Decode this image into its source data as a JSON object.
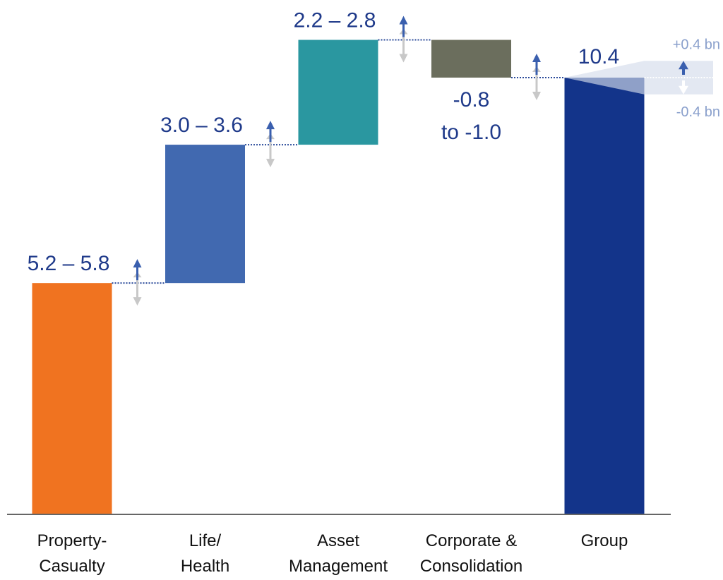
{
  "chart_data": {
    "type": "waterfall",
    "categories": [
      [
        "Property-",
        "Casualty"
      ],
      [
        "Life/",
        "Health"
      ],
      [
        "Asset",
        "Management"
      ],
      [
        "Corporate &",
        "Consolidation"
      ],
      [
        "Group"
      ]
    ],
    "values": [
      5.5,
      3.3,
      2.5,
      -0.9,
      10.4
    ],
    "value_labels": [
      [
        "5.2 – 5.8"
      ],
      [
        "3.0 – 3.6"
      ],
      [
        "2.2 – 2.8"
      ],
      [
        "-0.8",
        "to -1.0"
      ],
      [
        "10.4"
      ]
    ],
    "total": [
      false,
      false,
      false,
      false,
      true
    ],
    "colors": [
      "#f07320",
      "#4169b0",
      "#2a97a0",
      "#6b6e5d",
      "#13348a"
    ],
    "range_annotations": [
      {
        "value": 0.4,
        "label": "+0.4 bn"
      },
      {
        "value": -0.4,
        "label": "-0.4 bn"
      }
    ]
  }
}
